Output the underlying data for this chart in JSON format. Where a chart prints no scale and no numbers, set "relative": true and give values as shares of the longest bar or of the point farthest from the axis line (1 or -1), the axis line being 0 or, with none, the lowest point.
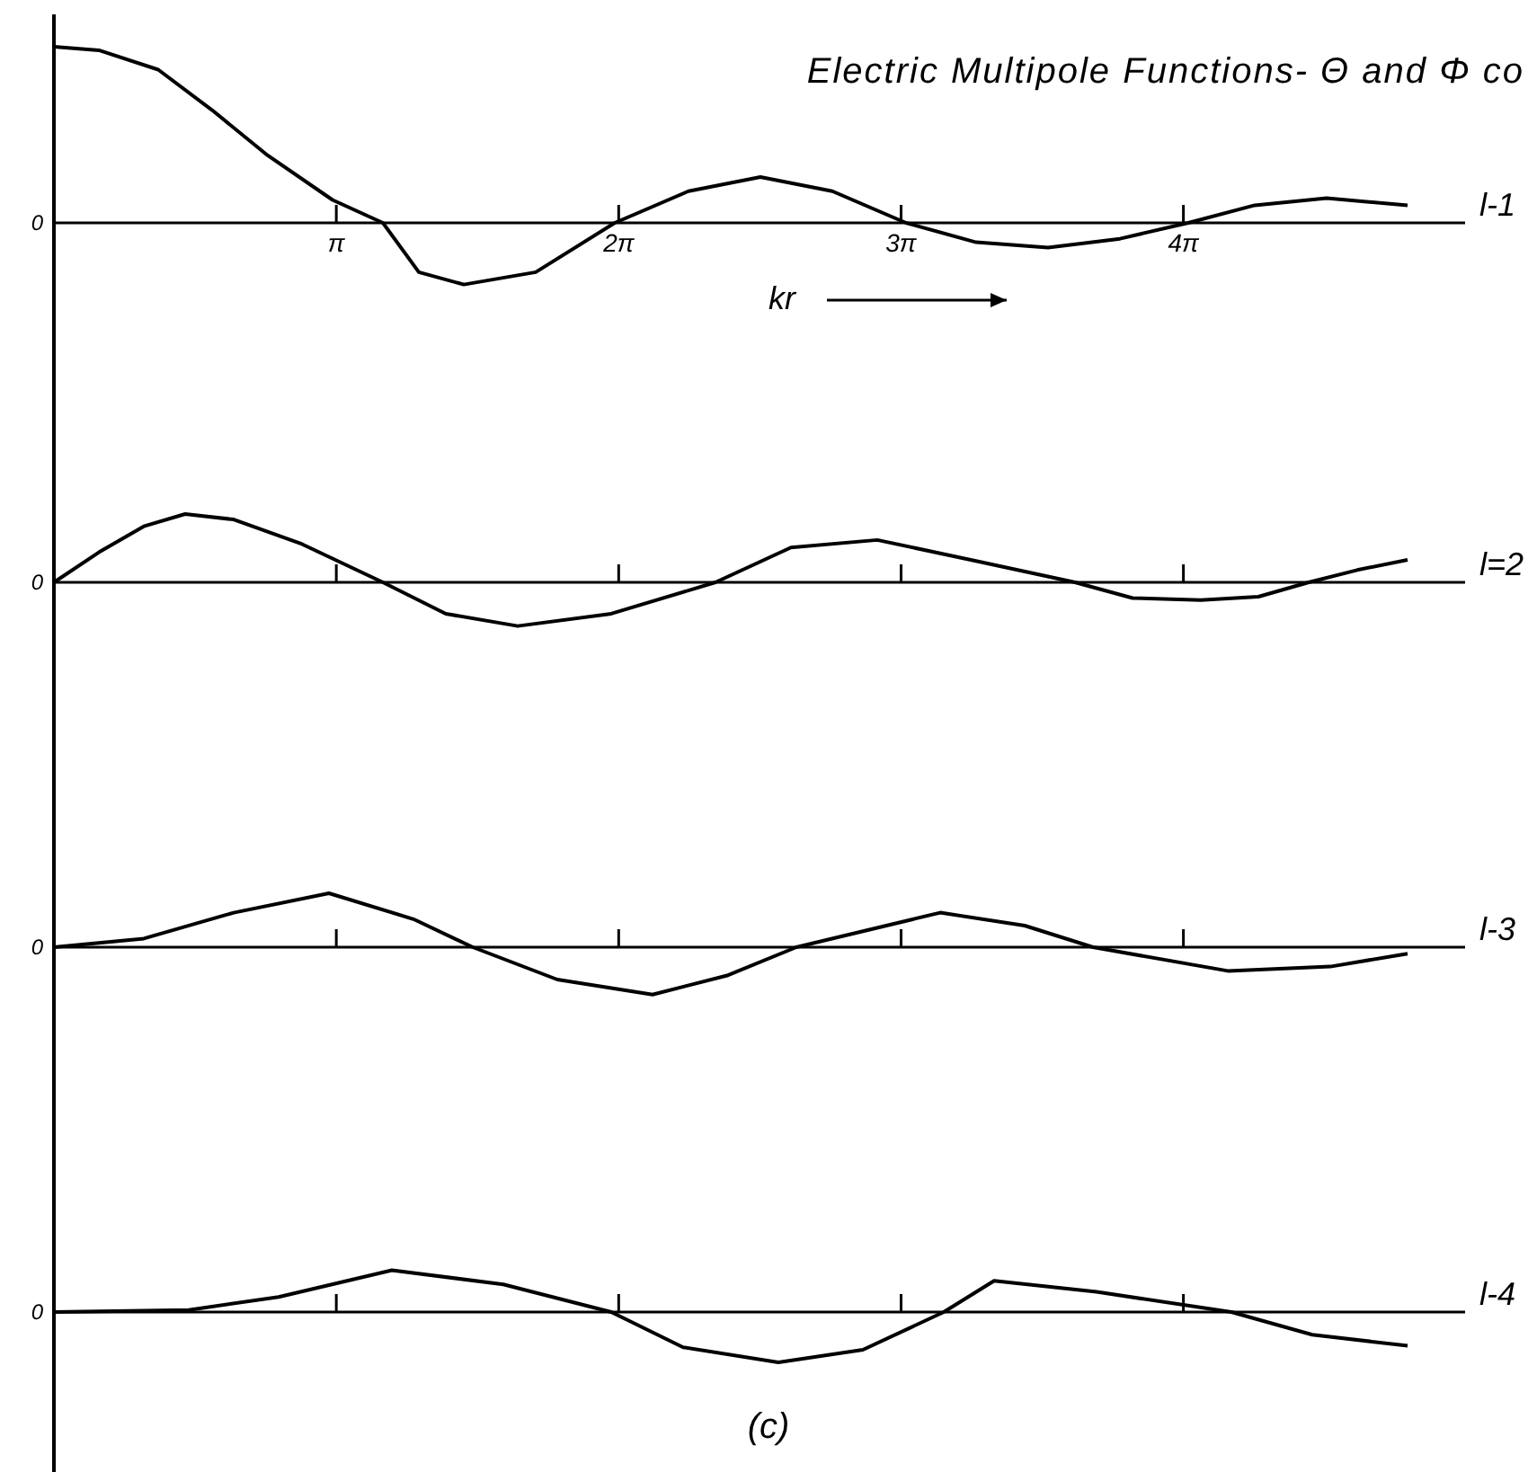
{
  "chart_data": [
    {
      "type": "line",
      "title": "Electric Multipole Functions- Θ and Φ co",
      "xlabel": "kr",
      "relative": true,
      "tick_labels": "x",
      "xlim": [
        0,
        15.7
      ],
      "xticks": [
        {
          "value": 3.1416,
          "label": "π"
        },
        {
          "value": 6.2832,
          "label": "2π"
        },
        {
          "value": 9.4248,
          "label": "3π"
        },
        {
          "value": 12.566,
          "label": "4π"
        }
      ],
      "annotations": [
        "0"
      ],
      "series": [
        {
          "name": "l-1",
          "color": "#000000",
          "x": [
            0,
            0.5,
            1.16,
            1.76,
            2.36,
            3.1,
            3.66,
            4.06,
            4.56,
            5.36,
            6.24,
            7.06,
            7.86,
            8.66,
            9.48,
            10.26,
            11.06,
            11.86,
            12.62,
            13.36,
            14.16,
            15.06
          ],
          "values": [
            1,
            0.98,
            0.87,
            0.64,
            0.39,
            0.13,
            0,
            -0.28,
            -0.35,
            -0.28,
            0,
            0.18,
            0.26,
            0.18,
            0,
            -0.11,
            -0.14,
            -0.09,
            0,
            0.1,
            0.14,
            0.1
          ]
        }
      ]
    },
    {
      "type": "line",
      "relative": true,
      "tick_labels": false,
      "xlim": [
        0,
        15.7
      ],
      "xticks": [
        {
          "value": 3.1416,
          "label": null
        },
        {
          "value": 6.2832,
          "label": null
        },
        {
          "value": 9.4248,
          "label": null
        },
        {
          "value": 12.566,
          "label": null
        }
      ],
      "annotations": [
        "0"
      ],
      "series": [
        {
          "name": "l=2",
          "color": "#000000",
          "x": [
            0,
            0.5,
            1.0,
            1.46,
            2.0,
            2.76,
            3.66,
            4.36,
            5.16,
            6.2,
            7.36,
            8.2,
            9.16,
            10.2,
            11.36,
            12.0,
            12.76,
            13.4,
            13.96,
            14.5,
            15.06
          ],
          "values": [
            0,
            0.44,
            0.82,
            1,
            0.92,
            0.56,
            0,
            -0.46,
            -0.64,
            -0.46,
            0,
            0.51,
            0.62,
            0.33,
            0,
            -0.23,
            -0.26,
            -0.21,
            0,
            0.18,
            0.33
          ]
        }
      ]
    },
    {
      "type": "line",
      "relative": true,
      "tick_labels": false,
      "xlim": [
        0,
        15.7
      ],
      "xticks": [
        {
          "value": 3.1416,
          "label": null
        },
        {
          "value": 6.2832,
          "label": null
        },
        {
          "value": 9.4248,
          "label": null
        },
        {
          "value": 12.566,
          "label": null
        }
      ],
      "annotations": [
        "0"
      ],
      "series": [
        {
          "name": "l-3",
          "color": "#000000",
          "x": [
            0,
            1.0,
            2.0,
            3.06,
            4.0,
            4.66,
            5.6,
            6.66,
            7.5,
            8.26,
            9.86,
            10.8,
            11.56,
            13.06,
            14.2,
            15.06
          ],
          "values": [
            0,
            0.16,
            0.64,
            1,
            0.52,
            0,
            -0.6,
            -0.88,
            -0.52,
            0,
            0.64,
            0.4,
            0,
            -0.44,
            -0.36,
            -0.12
          ]
        }
      ]
    },
    {
      "type": "line",
      "relative": true,
      "tick_labels": false,
      "xlim": [
        0,
        15.7
      ],
      "xticks": [
        {
          "value": 3.1416,
          "label": null
        },
        {
          "value": 6.2832,
          "label": null
        },
        {
          "value": 9.4248,
          "label": null
        },
        {
          "value": 12.566,
          "label": null
        }
      ],
      "annotations": [
        "0",
        "(c)"
      ],
      "series": [
        {
          "name": "l-4",
          "color": "#000000",
          "x": [
            0,
            1.5,
            2.5,
            3.76,
            5.0,
            6.2,
            7.0,
            8.06,
            9.0,
            9.9,
            10.46,
            11.6,
            13.1,
            14.0,
            15.06
          ],
          "values": [
            0,
            0.04,
            0.3,
            0.83,
            0.55,
            0,
            -0.7,
            -1,
            -0.75,
            0,
            0.62,
            0.4,
            0,
            -0.45,
            -0.67
          ]
        }
      ]
    }
  ]
}
